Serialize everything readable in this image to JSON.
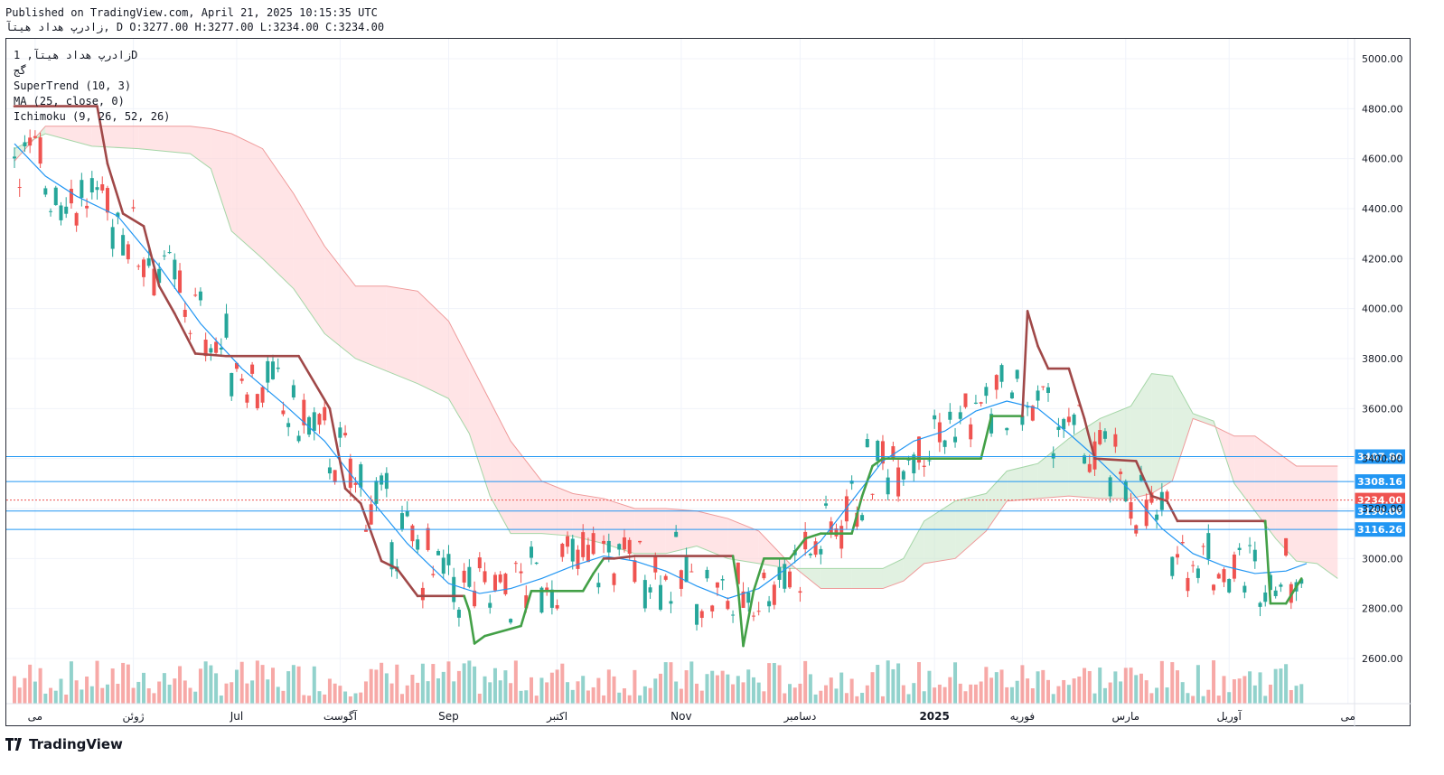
{
  "header": {
    "published_line": "Published on TradingView.com, April 21, 2025 10:15:35 UTC",
    "symbol": "زادرپ هداد هیتآ,",
    "ohlc_line": "D O:3277.00 H:3277.00 L:3234.00 C:3234.00"
  },
  "legend": {
    "title": "زادرپ هداد هیتآ, 1D",
    "exchange": "گج",
    "supertrend": "SuperTrend (10, 3)",
    "ma": "MA (25, close, 0)",
    "ichimoku": "Ichimoku (9, 26, 52, 26)"
  },
  "brand": {
    "name": "TradingView"
  },
  "colors": {
    "up": "#26a69a",
    "down": "#ef5350",
    "supertrend_up": "#43a047",
    "supertrend_down": "#a04848",
    "ma": "#2196f3",
    "cloud_bull": "#c8e6c9",
    "cloud_bear": "#ffcdd2",
    "hline": "#2196f3"
  },
  "chart_data": {
    "type": "candlestick",
    "title": "",
    "y_axis": {
      "ticks": [
        2600,
        2800,
        3000,
        3200,
        3400,
        3600,
        3800,
        4000,
        4200,
        4400,
        4600,
        4800,
        5000
      ],
      "tick_labels": [
        "2600.00",
        "2800.00",
        "3000.00",
        "3200.00",
        "3400.00",
        "3600.00",
        "3800.00",
        "4000.00",
        "4200.00",
        "4400.00",
        "4600.00",
        "4800.00",
        "5000.00"
      ],
      "ylim": [
        2480,
        5080
      ]
    },
    "x_axis": {
      "labels": [
        {
          "text": "می",
          "bar": 4
        },
        {
          "text": "ژوئن",
          "bar": 23
        },
        {
          "text": "Jul",
          "bar": 43
        },
        {
          "text": "آگوست",
          "bar": 63
        },
        {
          "text": "Sep",
          "bar": 84
        },
        {
          "text": "اکتبر",
          "bar": 105
        },
        {
          "text": "Nov",
          "bar": 129
        },
        {
          "text": "دسامبر",
          "bar": 152
        },
        {
          "text": "2025",
          "bar": 178,
          "bold": true
        },
        {
          "text": "فوریه",
          "bar": 195
        },
        {
          "text": "مارس",
          "bar": 215
        },
        {
          "text": "آوریل",
          "bar": 235
        },
        {
          "text": "می",
          "bar": 258
        }
      ]
    },
    "horizontal_lines": [
      {
        "value": 3407.8,
        "label": "3407.80",
        "style": "solid"
      },
      {
        "value": 3308.16,
        "label": "3308.16",
        "style": "solid"
      },
      {
        "value": 3234.0,
        "label": "3234.00",
        "style": "dotted",
        "color": "#ef5350"
      },
      {
        "value": 3190.06,
        "label": "3190.06",
        "style": "solid"
      },
      {
        "value": 3116.26,
        "label": "3116.26",
        "style": "solid"
      }
    ],
    "last_close": 3234.0,
    "supertrend": [
      {
        "bar": 0,
        "value": 4810
      },
      {
        "bar": 16,
        "value": 4810
      },
      {
        "bar": 18,
        "value": 4580
      },
      {
        "bar": 21,
        "value": 4380
      },
      {
        "bar": 25,
        "value": 4330
      },
      {
        "bar": 28,
        "value": 4090
      },
      {
        "bar": 31,
        "value": 3980
      },
      {
        "bar": 35,
        "value": 3820
      },
      {
        "bar": 41,
        "value": 3810
      },
      {
        "bar": 55,
        "value": 3810
      },
      {
        "bar": 61,
        "value": 3600
      },
      {
        "bar": 64,
        "value": 3280
      },
      {
        "bar": 67,
        "value": 3220
      },
      {
        "bar": 71,
        "value": 2990
      },
      {
        "bar": 74,
        "value": 2960
      },
      {
        "bar": 78,
        "value": 2850
      },
      {
        "bar": 87,
        "value": 2850
      },
      {
        "bar": 88,
        "value": 2790,
        "up": true
      },
      {
        "bar": 89,
        "value": 2660,
        "up": true
      },
      {
        "bar": 91,
        "value": 2690,
        "up": true
      },
      {
        "bar": 98,
        "value": 2730,
        "up": true
      },
      {
        "bar": 100,
        "value": 2870,
        "up": true
      },
      {
        "bar": 110,
        "value": 2870,
        "up": true
      },
      {
        "bar": 112,
        "value": 2940,
        "up": true
      },
      {
        "bar": 114,
        "value": 3000,
        "up": true
      },
      {
        "bar": 116,
        "value": 3000,
        "value2": 3110,
        "down_from": true
      },
      {
        "bar": 120,
        "value": 3010
      },
      {
        "bar": 139,
        "value": 3010
      },
      {
        "bar": 140,
        "value": 2880,
        "up": true
      },
      {
        "bar": 141,
        "value": 2650,
        "up": true
      },
      {
        "bar": 143,
        "value": 2870,
        "up": true
      },
      {
        "bar": 145,
        "value": 3000,
        "up": true
      },
      {
        "bar": 150,
        "value": 3000,
        "up": true
      },
      {
        "bar": 153,
        "value": 3080,
        "up": true
      },
      {
        "bar": 156,
        "value": 3100,
        "up": true
      },
      {
        "bar": 162,
        "value": 3100,
        "up": true
      },
      {
        "bar": 164,
        "value": 3250,
        "up": true
      },
      {
        "bar": 166,
        "value": 3370,
        "up": true
      },
      {
        "bar": 168,
        "value": 3400,
        "up": true
      },
      {
        "bar": 172,
        "value": 3400,
        "up": true
      },
      {
        "bar": 187,
        "value": 3400,
        "up": true
      },
      {
        "bar": 189,
        "value": 3570,
        "up": true
      },
      {
        "bar": 195,
        "value": 3570,
        "up": true
      },
      {
        "bar": 196,
        "value": 3990
      },
      {
        "bar": 198,
        "value": 3850
      },
      {
        "bar": 200,
        "value": 3760
      },
      {
        "bar": 204,
        "value": 3760
      },
      {
        "bar": 207,
        "value": 3560
      },
      {
        "bar": 209,
        "value": 3400
      },
      {
        "bar": 217,
        "value": 3390
      },
      {
        "bar": 220,
        "value": 3250
      },
      {
        "bar": 223,
        "value": 3230
      },
      {
        "bar": 225,
        "value": 3150
      },
      {
        "bar": 242,
        "value": 3150
      },
      {
        "bar": 243,
        "value": 2820,
        "up": true
      },
      {
        "bar": 246,
        "value": 2820,
        "up": true
      },
      {
        "bar": 249,
        "value": 2920,
        "up": true
      }
    ],
    "ma25": [
      {
        "bar": 0,
        "value": 4660
      },
      {
        "bar": 6,
        "value": 4530
      },
      {
        "bar": 12,
        "value": 4450
      },
      {
        "bar": 20,
        "value": 4370
      },
      {
        "bar": 28,
        "value": 4170
      },
      {
        "bar": 36,
        "value": 3940
      },
      {
        "bar": 44,
        "value": 3760
      },
      {
        "bar": 52,
        "value": 3620
      },
      {
        "bar": 60,
        "value": 3470
      },
      {
        "bar": 68,
        "value": 3260
      },
      {
        "bar": 76,
        "value": 3060
      },
      {
        "bar": 84,
        "value": 2900
      },
      {
        "bar": 90,
        "value": 2860
      },
      {
        "bar": 96,
        "value": 2880
      },
      {
        "bar": 102,
        "value": 2920
      },
      {
        "bar": 108,
        "value": 2970
      },
      {
        "bar": 114,
        "value": 3010
      },
      {
        "bar": 120,
        "value": 2990
      },
      {
        "bar": 126,
        "value": 2950
      },
      {
        "bar": 132,
        "value": 2890
      },
      {
        "bar": 138,
        "value": 2840
      },
      {
        "bar": 144,
        "value": 2880
      },
      {
        "bar": 150,
        "value": 2970
      },
      {
        "bar": 156,
        "value": 3070
      },
      {
        "bar": 162,
        "value": 3230
      },
      {
        "bar": 168,
        "value": 3390
      },
      {
        "bar": 174,
        "value": 3470
      },
      {
        "bar": 180,
        "value": 3510
      },
      {
        "bar": 186,
        "value": 3590
      },
      {
        "bar": 192,
        "value": 3630
      },
      {
        "bar": 198,
        "value": 3600
      },
      {
        "bar": 204,
        "value": 3500
      },
      {
        "bar": 210,
        "value": 3390
      },
      {
        "bar": 216,
        "value": 3270
      },
      {
        "bar": 222,
        "value": 3120
      },
      {
        "bar": 228,
        "value": 3020
      },
      {
        "bar": 234,
        "value": 2970
      },
      {
        "bar": 240,
        "value": 2940
      },
      {
        "bar": 246,
        "value": 2950
      },
      {
        "bar": 250,
        "value": 2980
      }
    ],
    "cloud": {
      "span_a": [
        {
          "bar": 0,
          "value": 4640
        },
        {
          "bar": 6,
          "value": 4700
        },
        {
          "bar": 15,
          "value": 4650
        },
        {
          "bar": 24,
          "value": 4640
        },
        {
          "bar": 34,
          "value": 4620
        },
        {
          "bar": 38,
          "value": 4560
        },
        {
          "bar": 42,
          "value": 4310
        },
        {
          "bar": 48,
          "value": 4200
        },
        {
          "bar": 54,
          "value": 4080
        },
        {
          "bar": 60,
          "value": 3900
        },
        {
          "bar": 66,
          "value": 3800
        },
        {
          "bar": 72,
          "value": 3750
        },
        {
          "bar": 78,
          "value": 3700
        },
        {
          "bar": 84,
          "value": 3640
        },
        {
          "bar": 88,
          "value": 3500
        },
        {
          "bar": 92,
          "value": 3250
        },
        {
          "bar": 96,
          "value": 3100
        },
        {
          "bar": 102,
          "value": 3100
        },
        {
          "bar": 108,
          "value": 3090
        },
        {
          "bar": 114,
          "value": 3060
        },
        {
          "bar": 120,
          "value": 3020
        },
        {
          "bar": 126,
          "value": 3020
        },
        {
          "bar": 132,
          "value": 3050
        },
        {
          "bar": 138,
          "value": 3000
        },
        {
          "bar": 144,
          "value": 2980
        },
        {
          "bar": 150,
          "value": 2960
        },
        {
          "bar": 156,
          "value": 2960
        },
        {
          "bar": 162,
          "value": 2960
        },
        {
          "bar": 168,
          "value": 2960
        },
        {
          "bar": 172,
          "value": 3000
        },
        {
          "bar": 176,
          "value": 3150
        },
        {
          "bar": 182,
          "value": 3230
        },
        {
          "bar": 188,
          "value": 3260
        },
        {
          "bar": 192,
          "value": 3350
        },
        {
          "bar": 198,
          "value": 3380
        },
        {
          "bar": 204,
          "value": 3480
        },
        {
          "bar": 210,
          "value": 3560
        },
        {
          "bar": 216,
          "value": 3610
        },
        {
          "bar": 220,
          "value": 3740
        },
        {
          "bar": 224,
          "value": 3730
        },
        {
          "bar": 228,
          "value": 3580
        },
        {
          "bar": 232,
          "value": 3550
        },
        {
          "bar": 236,
          "value": 3300
        },
        {
          "bar": 240,
          "value": 3190
        },
        {
          "bar": 244,
          "value": 3080
        },
        {
          "bar": 248,
          "value": 2990
        },
        {
          "bar": 252,
          "value": 2980
        },
        {
          "bar": 256,
          "value": 2920
        }
      ],
      "span_b": [
        {
          "bar": 0,
          "value": 4590
        },
        {
          "bar": 6,
          "value": 4730
        },
        {
          "bar": 15,
          "value": 4730
        },
        {
          "bar": 24,
          "value": 4730
        },
        {
          "bar": 34,
          "value": 4730
        },
        {
          "bar": 38,
          "value": 4720
        },
        {
          "bar": 42,
          "value": 4700
        },
        {
          "bar": 48,
          "value": 4640
        },
        {
          "bar": 54,
          "value": 4460
        },
        {
          "bar": 60,
          "value": 4250
        },
        {
          "bar": 66,
          "value": 4090
        },
        {
          "bar": 72,
          "value": 4090
        },
        {
          "bar": 78,
          "value": 4070
        },
        {
          "bar": 84,
          "value": 3950
        },
        {
          "bar": 88,
          "value": 3790
        },
        {
          "bar": 92,
          "value": 3630
        },
        {
          "bar": 96,
          "value": 3470
        },
        {
          "bar": 102,
          "value": 3310
        },
        {
          "bar": 108,
          "value": 3260
        },
        {
          "bar": 114,
          "value": 3240
        },
        {
          "bar": 120,
          "value": 3200
        },
        {
          "bar": 126,
          "value": 3200
        },
        {
          "bar": 132,
          "value": 3190
        },
        {
          "bar": 138,
          "value": 3160
        },
        {
          "bar": 144,
          "value": 3110
        },
        {
          "bar": 150,
          "value": 2980
        },
        {
          "bar": 156,
          "value": 2880
        },
        {
          "bar": 162,
          "value": 2880
        },
        {
          "bar": 168,
          "value": 2880
        },
        {
          "bar": 172,
          "value": 2910
        },
        {
          "bar": 176,
          "value": 2980
        },
        {
          "bar": 182,
          "value": 3000
        },
        {
          "bar": 188,
          "value": 3110
        },
        {
          "bar": 192,
          "value": 3230
        },
        {
          "bar": 198,
          "value": 3240
        },
        {
          "bar": 204,
          "value": 3250
        },
        {
          "bar": 210,
          "value": 3240
        },
        {
          "bar": 216,
          "value": 3240
        },
        {
          "bar": 220,
          "value": 3260
        },
        {
          "bar": 224,
          "value": 3310
        },
        {
          "bar": 228,
          "value": 3560
        },
        {
          "bar": 232,
          "value": 3530
        },
        {
          "bar": 236,
          "value": 3490
        },
        {
          "bar": 240,
          "value": 3490
        },
        {
          "bar": 244,
          "value": 3430
        },
        {
          "bar": 248,
          "value": 3370
        },
        {
          "bar": 252,
          "value": 3370
        },
        {
          "bar": 256,
          "value": 3370
        }
      ]
    },
    "candles_bars": 250
  }
}
